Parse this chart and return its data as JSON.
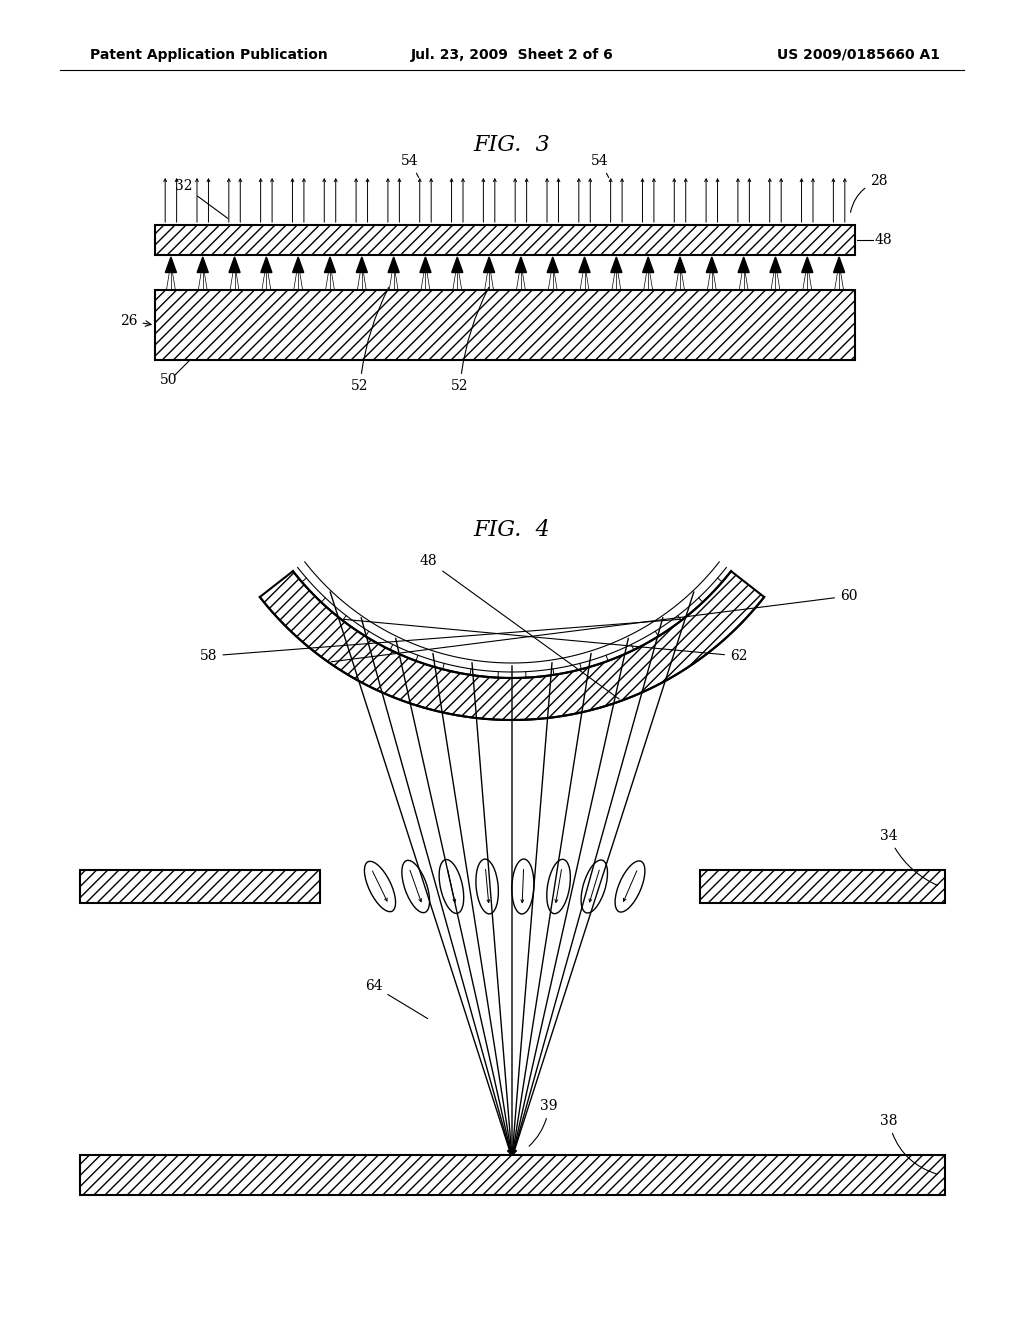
{
  "bg_color": "#ffffff",
  "line_color": "#000000",
  "header_left": "Patent Application Publication",
  "header_mid": "Jul. 23, 2009  Sheet 2 of 6",
  "header_right": "US 2009/0185660 A1",
  "fig3_title": "FIG.  3",
  "fig4_title": "FIG.  4"
}
